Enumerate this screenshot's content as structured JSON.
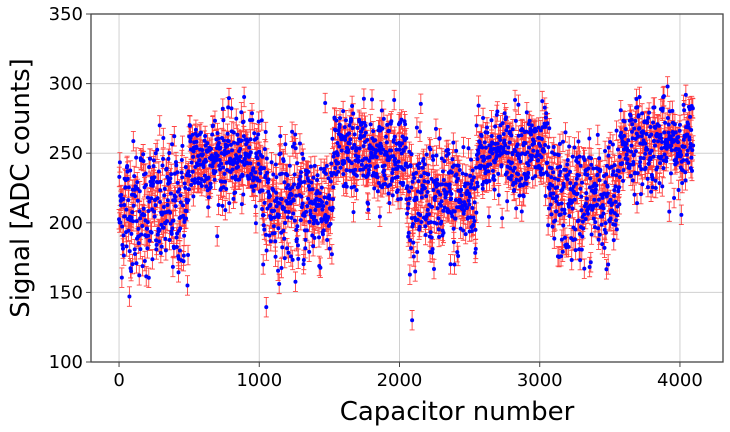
{
  "chart_data": {
    "type": "scatter",
    "title": "",
    "xlabel": "Capacitor number",
    "ylabel": "Signal [ADC counts]",
    "xlim": [
      -200,
      4307
    ],
    "ylim": [
      100,
      350
    ],
    "xticks": [
      0,
      1000,
      2000,
      3000,
      4000
    ],
    "yticks": [
      100,
      150,
      200,
      250,
      300,
      350
    ],
    "grid": true,
    "n_points": 4096,
    "error_bar": 7,
    "marker_color": "#0000ff",
    "error_color": "#ff2020",
    "segments": [
      {
        "x_start": 0,
        "x_end": 500,
        "mean": 210,
        "sigma": 24
      },
      {
        "x_start": 500,
        "x_end": 1020,
        "mean": 246,
        "sigma": 16
      },
      {
        "x_start": 1020,
        "x_end": 1530,
        "mean": 214,
        "sigma": 22
      },
      {
        "x_start": 1530,
        "x_end": 2050,
        "mean": 250,
        "sigma": 16
      },
      {
        "x_start": 2050,
        "x_end": 2550,
        "mean": 216,
        "sigma": 22
      },
      {
        "x_start": 2550,
        "x_end": 3060,
        "mean": 250,
        "sigma": 16
      },
      {
        "x_start": 3060,
        "x_end": 3570,
        "mean": 216,
        "sigma": 22
      },
      {
        "x_start": 3570,
        "x_end": 4096,
        "mean": 256,
        "sigma": 16
      }
    ]
  }
}
